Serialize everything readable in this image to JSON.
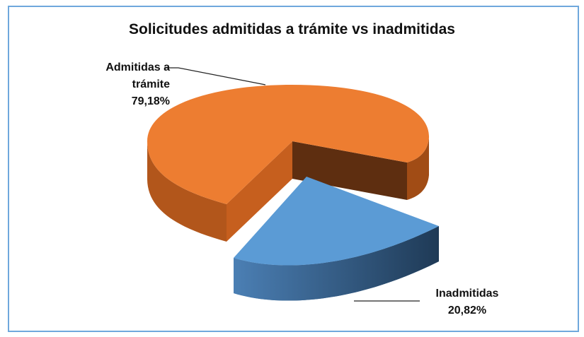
{
  "chart_data": {
    "type": "pie",
    "title": "Solicitudes admitidas a trámite vs inadmitidas",
    "slices": [
      {
        "label_line1": "Admitidas a",
        "label_line2": "trámite",
        "value": 79.18,
        "value_label": "79,18%",
        "color": "#ED7D31"
      },
      {
        "label_line1": "Inadmitidas",
        "value": 20.82,
        "value_label": "20,82%",
        "color": "#5B9BD5"
      }
    ],
    "exploded": true,
    "three_d": true,
    "legend": "none"
  }
}
